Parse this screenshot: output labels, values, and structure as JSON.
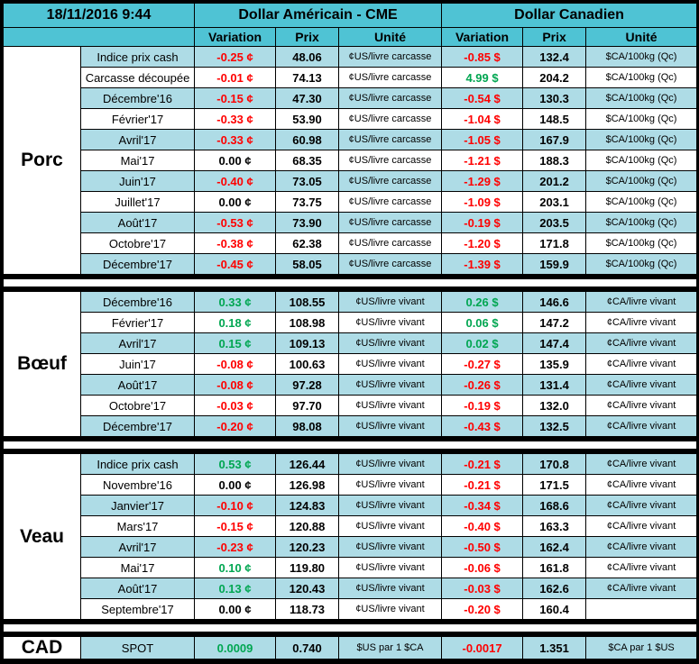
{
  "header": {
    "date": "18/11/2016 9:44",
    "us_title": "Dollar Américain - CME",
    "ca_title": "Dollar Canadien",
    "columns": [
      "Variation",
      "Prix",
      "Unité"
    ]
  },
  "colors": {
    "header_bg": "#4FC3D4",
    "stripe_bg": "#AEDCE6",
    "row_white": "#FFFFFF",
    "frame_black": "#000000",
    "negative_red": "#FF0000",
    "positive_green": "#00A651",
    "zero_black": "#000000"
  },
  "sections": [
    {
      "name": "porc",
      "label": "Porc",
      "rows": [
        {
          "label": "Indice prix cash",
          "us_var": "-0.25 ¢",
          "us_price": "48.06",
          "us_unit": "¢US/livre carcasse",
          "ca_var": "-0.85 $",
          "ca_price": "132.4",
          "ca_unit": "$CA/100kg (Qc)"
        },
        {
          "label": "Carcasse découpée",
          "us_var": "-0.01 ¢",
          "us_price": "74.13",
          "us_unit": "¢US/livre carcasse",
          "ca_var": "4.99 $",
          "ca_price": "204.2",
          "ca_unit": "$CA/100kg (Qc)"
        },
        {
          "label": "Décembre'16",
          "us_var": "-0.15 ¢",
          "us_price": "47.30",
          "us_unit": "¢US/livre carcasse",
          "ca_var": "-0.54 $",
          "ca_price": "130.3",
          "ca_unit": "$CA/100kg (Qc)"
        },
        {
          "label": "Février'17",
          "us_var": "-0.33 ¢",
          "us_price": "53.90",
          "us_unit": "¢US/livre carcasse",
          "ca_var": "-1.04 $",
          "ca_price": "148.5",
          "ca_unit": "$CA/100kg (Qc)"
        },
        {
          "label": "Avril'17",
          "us_var": "-0.33 ¢",
          "us_price": "60.98",
          "us_unit": "¢US/livre carcasse",
          "ca_var": "-1.05 $",
          "ca_price": "167.9",
          "ca_unit": "$CA/100kg (Qc)"
        },
        {
          "label": "Mai'17",
          "us_var": "0.00 ¢",
          "us_price": "68.35",
          "us_unit": "¢US/livre carcasse",
          "ca_var": "-1.21 $",
          "ca_price": "188.3",
          "ca_unit": "$CA/100kg (Qc)"
        },
        {
          "label": "Juin'17",
          "us_var": "-0.40 ¢",
          "us_price": "73.05",
          "us_unit": "¢US/livre carcasse",
          "ca_var": "-1.29 $",
          "ca_price": "201.2",
          "ca_unit": "$CA/100kg (Qc)"
        },
        {
          "label": "Juillet'17",
          "us_var": "0.00 ¢",
          "us_price": "73.75",
          "us_unit": "¢US/livre carcasse",
          "ca_var": "-1.09 $",
          "ca_price": "203.1",
          "ca_unit": "$CA/100kg (Qc)"
        },
        {
          "label": "Août'17",
          "us_var": "-0.53 ¢",
          "us_price": "73.90",
          "us_unit": "¢US/livre carcasse",
          "ca_var": "-0.19 $",
          "ca_price": "203.5",
          "ca_unit": "$CA/100kg (Qc)"
        },
        {
          "label": "Octobre'17",
          "us_var": "-0.38 ¢",
          "us_price": "62.38",
          "us_unit": "¢US/livre carcasse",
          "ca_var": "-1.20 $",
          "ca_price": "171.8",
          "ca_unit": "$CA/100kg (Qc)"
        },
        {
          "label": "Décembre'17",
          "us_var": "-0.45 ¢",
          "us_price": "58.05",
          "us_unit": "¢US/livre carcasse",
          "ca_var": "-1.39 $",
          "ca_price": "159.9",
          "ca_unit": "$CA/100kg (Qc)"
        }
      ]
    },
    {
      "name": "boeuf",
      "label": "Bœuf",
      "rows": [
        {
          "label": "Décembre'16",
          "us_var": "0.33 ¢",
          "us_price": "108.55",
          "us_unit": "¢US/livre vivant",
          "ca_var": "0.26 $",
          "ca_price": "146.6",
          "ca_unit": "¢CA/livre vivant"
        },
        {
          "label": "Février'17",
          "us_var": "0.18 ¢",
          "us_price": "108.98",
          "us_unit": "¢US/livre vivant",
          "ca_var": "0.06 $",
          "ca_price": "147.2",
          "ca_unit": "¢CA/livre vivant"
        },
        {
          "label": "Avril'17",
          "us_var": "0.15 ¢",
          "us_price": "109.13",
          "us_unit": "¢US/livre vivant",
          "ca_var": "0.02 $",
          "ca_price": "147.4",
          "ca_unit": "¢CA/livre vivant"
        },
        {
          "label": "Juin'17",
          "us_var": "-0.08 ¢",
          "us_price": "100.63",
          "us_unit": "¢US/livre vivant",
          "ca_var": "-0.27 $",
          "ca_price": "135.9",
          "ca_unit": "¢CA/livre vivant"
        },
        {
          "label": "Août'17",
          "us_var": "-0.08 ¢",
          "us_price": "97.28",
          "us_unit": "¢US/livre vivant",
          "ca_var": "-0.26 $",
          "ca_price": "131.4",
          "ca_unit": "¢CA/livre vivant"
        },
        {
          "label": "Octobre'17",
          "us_var": "-0.03 ¢",
          "us_price": "97.70",
          "us_unit": "¢US/livre vivant",
          "ca_var": "-0.19 $",
          "ca_price": "132.0",
          "ca_unit": "¢CA/livre vivant"
        },
        {
          "label": "Décembre'17",
          "us_var": "-0.20 ¢",
          "us_price": "98.08",
          "us_unit": "¢US/livre vivant",
          "ca_var": "-0.43 $",
          "ca_price": "132.5",
          "ca_unit": "¢CA/livre vivant"
        }
      ]
    },
    {
      "name": "veau",
      "label": "Veau",
      "rows": [
        {
          "label": "Indice prix cash",
          "us_var": "0.53 ¢",
          "us_price": "126.44",
          "us_unit": "¢US/livre vivant",
          "ca_var": "-0.21 $",
          "ca_price": "170.8",
          "ca_unit": "¢CA/livre vivant"
        },
        {
          "label": "Novembre'16",
          "us_var": "0.00 ¢",
          "us_price": "126.98",
          "us_unit": "¢US/livre vivant",
          "ca_var": "-0.21 $",
          "ca_price": "171.5",
          "ca_unit": "¢CA/livre vivant"
        },
        {
          "label": "Janvier'17",
          "us_var": "-0.10 ¢",
          "us_price": "124.83",
          "us_unit": "¢US/livre vivant",
          "ca_var": "-0.34 $",
          "ca_price": "168.6",
          "ca_unit": "¢CA/livre vivant"
        },
        {
          "label": "Mars'17",
          "us_var": "-0.15 ¢",
          "us_price": "120.88",
          "us_unit": "¢US/livre vivant",
          "ca_var": "-0.40 $",
          "ca_price": "163.3",
          "ca_unit": "¢CA/livre vivant"
        },
        {
          "label": "Avril'17",
          "us_var": "-0.23 ¢",
          "us_price": "120.23",
          "us_unit": "¢US/livre vivant",
          "ca_var": "-0.50 $",
          "ca_price": "162.4",
          "ca_unit": "¢CA/livre vivant"
        },
        {
          "label": "Mai'17",
          "us_var": "0.10 ¢",
          "us_price": "119.80",
          "us_unit": "¢US/livre vivant",
          "ca_var": "-0.06 $",
          "ca_price": "161.8",
          "ca_unit": "¢CA/livre vivant"
        },
        {
          "label": "Août'17",
          "us_var": "0.13 ¢",
          "us_price": "120.43",
          "us_unit": "¢US/livre vivant",
          "ca_var": "-0.03 $",
          "ca_price": "162.6",
          "ca_unit": "¢CA/livre vivant"
        },
        {
          "label": "Septembre'17",
          "us_var": "0.00 ¢",
          "us_price": "118.73",
          "us_unit": "¢US/livre vivant",
          "ca_var": "-0.20 $",
          "ca_price": "160.4",
          "ca_unit": ""
        }
      ]
    },
    {
      "name": "cad",
      "label": "CAD",
      "rows": [
        {
          "label": "SPOT",
          "us_var": "0.0009",
          "us_price": "0.740",
          "us_unit": "$US par 1 $CA",
          "ca_var": "-0.0017",
          "ca_price": "1.351",
          "ca_unit": "$CA par 1 $US"
        }
      ]
    }
  ]
}
